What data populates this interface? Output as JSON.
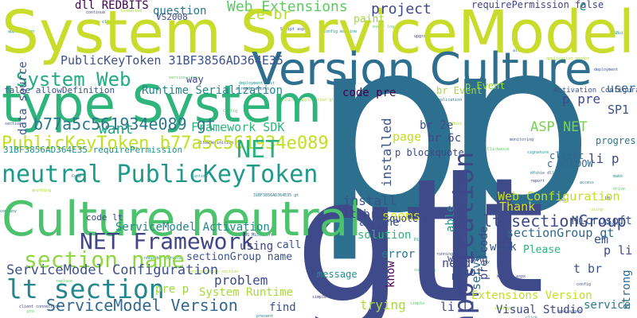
{
  "words": [
    {
      "text": "p",
      "color": "#2c6f8e"
    },
    {
      "text": "p",
      "color": "#2c6f8e"
    },
    {
      "text": "gt",
      "color": "#3f4a8a"
    },
    {
      "text": "lt",
      "color": "#3f4a8a"
    },
    {
      "text": "System ServiceModel",
      "color": "#c9dc2b"
    },
    {
      "text": "Version Culture",
      "color": "#2e6e8e"
    },
    {
      "text": "type System",
      "color": "#2fb47c"
    },
    {
      "text": "Culture neutral",
      "color": "#4cc26c"
    },
    {
      "text": "neutral PublicKeyToken",
      "color": "#1f9a8a"
    },
    {
      "text": "PublicKeyToken b77a5c561934e089",
      "color": "#c2df23"
    },
    {
      "text": "NET Framework",
      "color": "#414487"
    },
    {
      "text": "section name",
      "color": "#8fd744"
    },
    {
      "text": "ServiceModel Configuration",
      "color": "#3b528b"
    },
    {
      "text": "lt section",
      "color": "#24868e"
    },
    {
      "text": "ServiceModel Version",
      "color": "#31688e"
    },
    {
      "text": "application",
      "color": "#3e4989"
    },
    {
      "text": "System Web",
      "color": "#25ab82"
    },
    {
      "text": "NET",
      "color": "#2ab07f"
    },
    {
      "text": "b77a5c561934e089 gt",
      "color": "#2a788e"
    },
    {
      "text": "Web Extensions",
      "color": "#5ec962"
    },
    {
      "text": "PublicKeyToken 31BF3856AD364E35",
      "color": "#3b528b"
    },
    {
      "text": "Runtime Serialization",
      "color": "#24868e"
    },
    {
      "text": "dll REDBITS",
      "color": "#440154"
    },
    {
      "text": "question",
      "color": "#2a788e"
    },
    {
      "text": "2e br",
      "color": "#b5de2b"
    },
    {
      "text": "project",
      "color": "#3e4989"
    },
    {
      "text": "requirePermission false",
      "color": "#414487"
    },
    {
      "text": "c",
      "color": "#21918c"
    },
    {
      "text": "data source",
      "color": "#3b528b"
    },
    {
      "text": "want",
      "color": "#21a685"
    },
    {
      "text": "Framework SDK",
      "color": "#2fb47c"
    },
    {
      "text": "ASP NET",
      "color": "#7ad151"
    },
    {
      "text": "SP1",
      "color": "#3b528b"
    },
    {
      "text": "user",
      "color": "#31688e"
    },
    {
      "text": "Web Configuration",
      "color": "#c2df23"
    },
    {
      "text": "lt sectionGroup",
      "color": "#3e4989"
    },
    {
      "text": "sectionGroup gt",
      "color": "#31688e"
    },
    {
      "text": "ServiceModel Activation",
      "color": "#24868e"
    },
    {
      "text": "sectionGroup name",
      "color": "#3b528b"
    },
    {
      "text": "using",
      "color": "#414487"
    },
    {
      "text": "problem",
      "color": "#3e4989"
    },
    {
      "text": "System Runtime",
      "color": "#a8db34"
    },
    {
      "text": "pre p",
      "color": "#9bd93c"
    },
    {
      "text": "find",
      "color": "#3b528b"
    },
    {
      "text": "trying",
      "color": "#a8db34"
    },
    {
      "text": "Extensions Version",
      "color": "#c2df23"
    },
    {
      "text": "Visual Studio",
      "color": "#3e4989"
    },
    {
      "text": "service",
      "color": "#2a788e"
    },
    {
      "text": "strong",
      "color": "#31688e"
    },
    {
      "text": "install",
      "color": "#3b528b"
    },
    {
      "text": "installed",
      "color": "#3b528b"
    },
    {
      "text": "seems",
      "color": "#d2e21b"
    },
    {
      "text": "code pre",
      "color": "#440154"
    },
    {
      "text": "page",
      "color": "#c2df23"
    },
    {
      "text": "br Event",
      "color": "#a0da39"
    },
    {
      "text": "br 2e",
      "color": "#3b528b"
    },
    {
      "text": "br 6c",
      "color": "#3e4989"
    },
    {
      "text": "p blockquote",
      "color": "#3e4989"
    },
    {
      "text": "lt br",
      "color": "#414487"
    },
    {
      "text": "blockquote p",
      "color": "#3e4989"
    },
    {
      "text": "anyone",
      "color": "#3b528b"
    },
    {
      "text": "solution",
      "color": "#2fb47c"
    },
    {
      "text": "pre code",
      "color": "#3e4989"
    },
    {
      "text": "able",
      "color": "#21918c"
    },
    {
      "text": "Thank",
      "color": "#d2e21b"
    },
    {
      "text": "work",
      "color": "#3b528b"
    },
    {
      "text": "server",
      "color": "#31688e"
    },
    {
      "text": "need",
      "color": "#3e4989"
    },
    {
      "text": "error",
      "color": "#2a788e"
    },
    {
      "text": "know",
      "color": "#440154"
    },
    {
      "text": "got",
      "color": "#3b528b"
    },
    {
      "text": "li li",
      "color": "#3e4989"
    },
    {
      "text": "p li",
      "color": "#3e4989"
    },
    {
      "text": "t br",
      "color": "#3b528b"
    },
    {
      "text": "em",
      "color": "#3b528b"
    },
    {
      "text": "Microsoft NET",
      "color": "#3b528b"
    },
    {
      "text": "li p",
      "color": "#3e4989"
    },
    {
      "text": "p pre",
      "color": "#3e4989"
    },
    {
      "text": "progress bar",
      "color": "#2a788e"
    },
    {
      "text": "client",
      "color": "#31688e"
    },
    {
      "text": "c WINDOW",
      "color": "#31688e"
    },
    {
      "text": "working",
      "color": "#3e4989"
    },
    {
      "text": "message",
      "color": "#21918c"
    },
    {
      "text": "31BF3856AD364E35 requirePermission",
      "color": "#21918c"
    },
    {
      "text": "false allowDefinition",
      "color": "#3b528b"
    },
    {
      "text": "way",
      "color": "#3e4989"
    },
    {
      "text": "VS2008",
      "color": "#3e4989"
    },
    {
      "text": "code lt",
      "color": "#3e4989"
    },
    {
      "text": "Please",
      "color": "#2fb47c"
    },
    {
      "text": "call",
      "color": "#3b528b"
    },
    {
      "text": "paint",
      "color": "#a0da39"
    },
    {
      "text": "p Event",
      "color": "#a0da39"
    },
    {
      "text": "Activation Configuration",
      "color": "#3b528b"
    }
  ]
}
